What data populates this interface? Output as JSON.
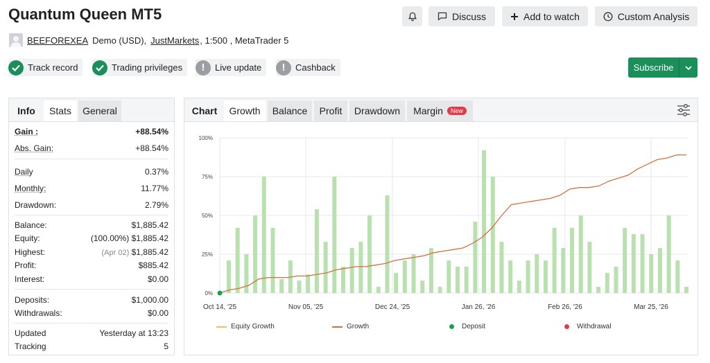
{
  "header": {
    "title": "Quantum Queen MT5",
    "discuss_label": "Discuss",
    "watch_label": "Add to watch",
    "analysis_label": "Custom Analysis"
  },
  "account": {
    "owner": "BEEFOREXEA",
    "mode": "Demo (USD),",
    "broker": "JustMarkets",
    "details": ", 1:500 , MetaTrader 5"
  },
  "badges": [
    {
      "label": "Track record",
      "status": "ok"
    },
    {
      "label": "Trading privileges",
      "status": "ok"
    },
    {
      "label": "Live update",
      "status": "info"
    },
    {
      "label": "Cashback",
      "status": "info"
    }
  ],
  "subscribe_label": "Subscribe",
  "stats_tabs": [
    "Info",
    "Stats",
    "General"
  ],
  "stats": {
    "gain": {
      "label": "Gain :",
      "value": "+88.54%"
    },
    "abs_gain": {
      "label": "Abs. Gain:",
      "value": "+88.54%"
    },
    "daily": {
      "label": "Daily",
      "value": "0.37%"
    },
    "monthly": {
      "label": "Monthly:",
      "value": "11.77%"
    },
    "drawdown": {
      "label": "Drawdown:",
      "value": "2.79%"
    },
    "balance": {
      "label": "Balance:",
      "value": "$1,885.42"
    },
    "equity": {
      "label": "Equity:",
      "note": "(100.00%)",
      "value": "$1,885.42"
    },
    "highest": {
      "label": "Highest:",
      "note": "(Apr 02)",
      "value": "$1,885.42"
    },
    "profit": {
      "label": "Profit:",
      "value": "$885.42"
    },
    "interest": {
      "label": "Interest:",
      "value": "$0.00"
    },
    "deposits": {
      "label": "Deposits:",
      "value": "$1,000.00"
    },
    "withdrawals": {
      "label": "Withdrawals:",
      "value": "$0.00"
    },
    "updated": {
      "label": "Updated",
      "value": "Yesterday at 13:23"
    },
    "tracking": {
      "label": "Tracking",
      "value": "5"
    }
  },
  "chart_tabs": {
    "label": "Chart",
    "items": [
      "Growth",
      "Balance",
      "Profit",
      "Drawdown",
      "Margin"
    ],
    "new_badge": "New"
  },
  "colors": {
    "accent_green": "#1a8f5a",
    "gain_green": "#1f9c4a",
    "growth_line": "#d2703e",
    "bar_fill": "#b9e1b0",
    "equity_line": "#f0c24b",
    "deposit": "#18a34a",
    "withdrawal": "#e0394a"
  },
  "chart_data": {
    "type": "bar",
    "y_ticks": [
      "0%",
      "25%",
      "50%",
      "75%",
      "100%"
    ],
    "ylim": [
      0,
      100
    ],
    "x_ticks": [
      "Oct 14, '25",
      "Nov 05, '25",
      "Dec 24, '25",
      "Jan 26, '26",
      "Feb 26, '26",
      "Mar 25, '26"
    ],
    "legend": [
      "Equity Growth",
      "Growth",
      "Deposit",
      "Withdrawal"
    ],
    "bars": [
      21,
      42,
      25,
      50,
      75,
      42,
      9,
      21,
      8,
      12,
      54,
      33,
      75,
      17,
      29,
      33,
      50,
      4,
      63,
      13,
      21,
      25,
      8,
      29,
      4,
      21,
      17,
      17,
      46,
      92,
      75,
      33,
      21,
      8,
      21,
      25,
      21,
      42,
      29,
      42,
      50,
      33,
      4,
      13,
      17,
      42,
      38,
      38,
      25,
      29,
      50,
      21,
      4
    ],
    "growth": [
      0,
      2,
      3,
      5,
      9,
      10,
      10,
      10,
      11,
      11,
      12,
      13,
      15,
      16,
      17,
      17,
      18,
      19,
      21,
      22,
      23,
      24,
      26,
      27,
      28,
      29,
      32,
      36,
      42,
      50,
      57,
      58,
      59,
      60,
      61,
      63,
      67,
      68,
      68,
      69,
      72,
      74,
      76,
      80,
      83,
      86,
      87,
      89,
      89
    ]
  }
}
